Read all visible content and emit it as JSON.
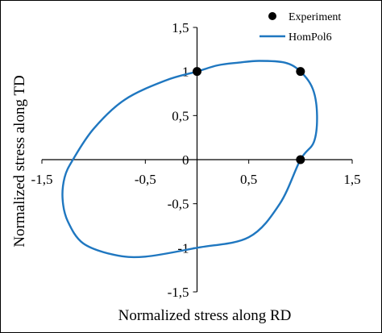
{
  "chart_data": {
    "type": "scatter",
    "title": "",
    "xlabel": "Normalized stress along RD",
    "ylabel": "Normalized stress along TD",
    "xlim": [
      -1.5,
      1.5
    ],
    "ylim": [
      -1.5,
      1.5
    ],
    "x_ticks": [
      "-1,5",
      "-0,5",
      "0,5",
      "1,5"
    ],
    "x_tick_values": [
      -1.5,
      -0.5,
      0.5,
      1.5
    ],
    "y_ticks": [
      "1,5",
      "1",
      "0,5",
      "0",
      "-0,5",
      "-1",
      "-1,5"
    ],
    "y_tick_values": [
      1.5,
      1,
      0.5,
      0,
      -0.5,
      -1,
      -1.5
    ],
    "grid": false,
    "legend_position": "top-right",
    "colors": {
      "experiment": "#000000",
      "hompol6": "#1f77c0"
    },
    "series": [
      {
        "name": "Experiment",
        "kind": "markers",
        "points": [
          [
            0,
            1
          ],
          [
            1,
            1
          ],
          [
            1,
            0
          ]
        ]
      },
      {
        "name": "HomPol6",
        "kind": "line",
        "points": [
          [
            0,
            1
          ],
          [
            0.2,
            1.07
          ],
          [
            0.4,
            1.1
          ],
          [
            0.6,
            1.12
          ],
          [
            0.85,
            1.1
          ],
          [
            1.0,
            1.0
          ],
          [
            1.12,
            0.8
          ],
          [
            1.16,
            0.5
          ],
          [
            1.13,
            0.2
          ],
          [
            1.0,
            0
          ],
          [
            0.8,
            -0.5
          ],
          [
            0.5,
            -0.88
          ],
          [
            0,
            -1
          ],
          [
            -0.5,
            -1.1
          ],
          [
            -0.8,
            -1.08
          ],
          [
            -1.1,
            -0.95
          ],
          [
            -1.25,
            -0.7
          ],
          [
            -1.3,
            -0.45
          ],
          [
            -1.28,
            -0.2
          ],
          [
            -1.2,
            0
          ],
          [
            -1.0,
            0.35
          ],
          [
            -0.7,
            0.68
          ],
          [
            -0.3,
            0.9
          ],
          [
            0,
            1
          ]
        ]
      }
    ]
  }
}
